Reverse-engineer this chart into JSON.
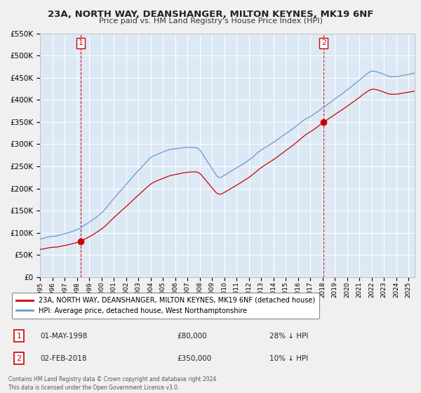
{
  "title": "23A, NORTH WAY, DEANSHANGER, MILTON KEYNES, MK19 6NF",
  "subtitle": "Price paid vs. HM Land Registry's House Price Index (HPI)",
  "red_line_label": "23A, NORTH WAY, DEANSHANGER, MILTON KEYNES, MK19 6NF (detached house)",
  "blue_line_label": "HPI: Average price, detached house, West Northamptonshire",
  "sale1_date": "01-MAY-1998",
  "sale1_price": 80000,
  "sale1_pct": "28% ↓ HPI",
  "sale2_date": "02-FEB-2018",
  "sale2_price": 350000,
  "sale2_pct": "10% ↓ HPI",
  "sale1_x": 1998.33,
  "sale2_x": 2018.08,
  "ylim": [
    0,
    550000
  ],
  "xlim": [
    1995.0,
    2025.5
  ],
  "yticks": [
    0,
    50000,
    100000,
    150000,
    200000,
    250000,
    300000,
    350000,
    400000,
    450000,
    500000,
    550000
  ],
  "background_color": "#dce9f5",
  "grid_color": "#ffffff",
  "red_color": "#cc0000",
  "blue_color": "#6699cc",
  "fig_bg": "#f0f0f0",
  "footnote": "Contains HM Land Registry data © Crown copyright and database right 2024.\nThis data is licensed under the Open Government Licence v3.0."
}
